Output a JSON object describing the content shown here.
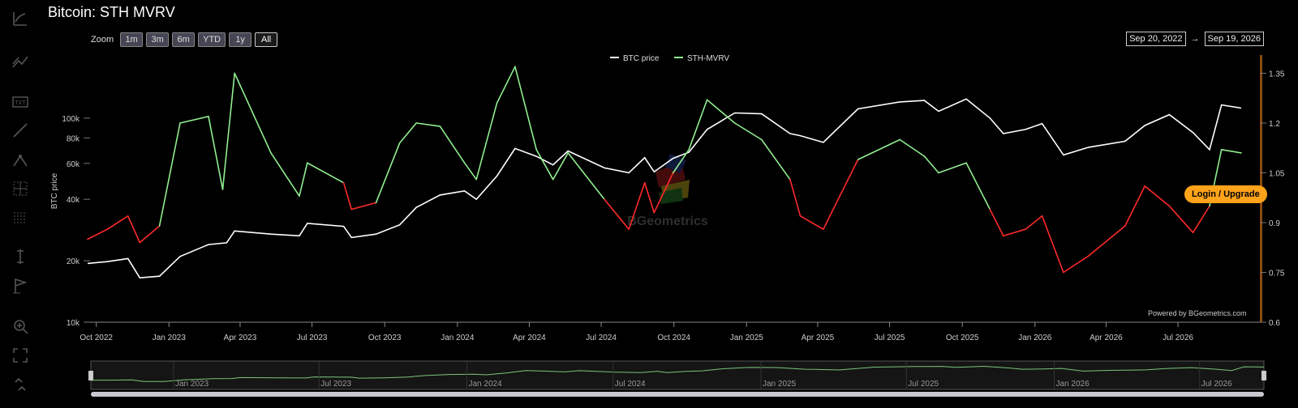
{
  "title": "Bitcoin: STH MVRV",
  "zoom": {
    "label": "Zoom",
    "buttons": [
      "1m",
      "3m",
      "6m",
      "YTD",
      "1y",
      "All"
    ],
    "selected": "All"
  },
  "range": {
    "from": "Sep 20, 2022",
    "arrow": "→",
    "to": "Sep 19, 2026"
  },
  "upgrade_label": "Login / Upgrade",
  "powered_by": "Powered by BGeometrics.com",
  "watermark": "BGeometrics",
  "toolbar_icons": [
    "indicator-icon",
    "trend-line-icon",
    "text-annotation-icon",
    "line-icon",
    "measure-icon",
    "crosshair-icon",
    "grid-icon",
    "vertical-line-icon",
    "flag-icon",
    "zoom-icon",
    "fullscreen-icon",
    "collapse-icon"
  ],
  "colors": {
    "background": "#000000",
    "btc_price": "#ffffff",
    "sth_high": "#90ee90",
    "sth_low": "#ff2a2a",
    "accent": "#ffa31a",
    "right_axis_bar": "#8a4a10"
  },
  "chart_data": {
    "type": "line",
    "title": "Bitcoin: STH MVRV",
    "xlabel": "",
    "ylabel": "BTC price",
    "y2label": "",
    "xlim": [
      "2022-09-20",
      "2026-09-19"
    ],
    "ylim": [
      10000,
      200000
    ],
    "y_scale": "log",
    "y_ticks": [
      "10k",
      "20k",
      "40k",
      "60k",
      "80k",
      "100k"
    ],
    "y_tick_values": [
      10000,
      20000,
      40000,
      60000,
      80000,
      100000
    ],
    "y2lim": [
      0.6,
      1.4
    ],
    "y2_ticks": [
      "0.6",
      "0.75",
      "0.9",
      "1.05",
      "1.2",
      "1.35"
    ],
    "y2_tick_values": [
      0.6,
      0.75,
      0.9,
      1.05,
      1.2,
      1.35
    ],
    "x_ticks": [
      "Oct 2022",
      "Jan 2023",
      "Apr 2023",
      "Jul 2023",
      "Oct 2023",
      "Jan 2024",
      "Apr 2024",
      "Jul 2024",
      "Oct 2024",
      "Jan 2025",
      "Apr 2025",
      "Jul 2025",
      "Oct 2025",
      "Jan 2026",
      "Apr 2026",
      "Jul 2026"
    ],
    "x_tick_dates": [
      "2022-10-01",
      "2023-01-01",
      "2023-04-01",
      "2023-07-01",
      "2023-10-01",
      "2024-01-01",
      "2024-04-01",
      "2024-07-01",
      "2024-10-01",
      "2025-01-01",
      "2025-04-01",
      "2025-07-01",
      "2025-10-01",
      "2026-01-01",
      "2026-04-01",
      "2026-07-01"
    ],
    "navigator_ticks": [
      "Jan 2023",
      "Jul 2023",
      "Jan 2024",
      "Jul 2024",
      "Jan 2025",
      "Jul 2025",
      "Jan 2026",
      "Jul 2026"
    ],
    "navigator_tick_dates": [
      "2023-01-01",
      "2023-07-01",
      "2024-01-01",
      "2024-07-01",
      "2025-01-01",
      "2025-07-01",
      "2026-01-01",
      "2026-07-01"
    ],
    "legend": {
      "position": "top-center"
    },
    "grid": false,
    "series": [
      {
        "name": "BTC price",
        "axis": "left",
        "x": [
          "2022-09-20",
          "2022-10-15",
          "2022-11-10",
          "2022-11-25",
          "2022-12-20",
          "2023-01-15",
          "2023-02-20",
          "2023-03-15",
          "2023-03-25",
          "2023-05-10",
          "2023-06-15",
          "2023-06-25",
          "2023-08-10",
          "2023-08-20",
          "2023-09-20",
          "2023-10-20",
          "2023-11-10",
          "2023-12-10",
          "2024-01-10",
          "2024-01-25",
          "2024-02-20",
          "2024-03-14",
          "2024-04-10",
          "2024-05-01",
          "2024-05-20",
          "2024-07-05",
          "2024-08-05",
          "2024-08-25",
          "2024-09-06",
          "2024-09-30",
          "2024-10-20",
          "2024-11-12",
          "2024-12-17",
          "2025-01-20",
          "2025-02-25",
          "2025-03-10",
          "2025-04-08",
          "2025-05-22",
          "2025-07-14",
          "2025-08-14",
          "2025-09-01",
          "2025-10-06",
          "2025-11-05",
          "2025-11-22",
          "2025-12-20",
          "2026-01-10",
          "2026-02-06",
          "2026-03-10",
          "2026-04-25",
          "2026-05-20",
          "2026-06-20",
          "2026-07-20",
          "2026-08-10",
          "2026-08-25",
          "2026-09-19"
        ],
        "y": [
          19400,
          19800,
          20500,
          16500,
          16800,
          21000,
          24000,
          24500,
          28000,
          27000,
          26500,
          30500,
          29500,
          26000,
          27000,
          30000,
          36500,
          42000,
          44000,
          40000,
          52000,
          71000,
          65000,
          59000,
          69000,
          57000,
          54000,
          64000,
          54500,
          63500,
          68000,
          88000,
          106000,
          105000,
          84000,
          82000,
          76000,
          111000,
          120000,
          122000,
          108000,
          124000,
          100000,
          84000,
          88000,
          94000,
          66000,
          72000,
          77000,
          92000,
          104000,
          85000,
          70000,
          116000,
          112000
        ]
      },
      {
        "name": "STH-MVRV",
        "axis": "right",
        "x": [
          "2022-09-20",
          "2022-10-15",
          "2022-11-10",
          "2022-11-25",
          "2022-12-20",
          "2023-01-15",
          "2023-02-20",
          "2023-03-10",
          "2023-03-25",
          "2023-05-10",
          "2023-06-15",
          "2023-06-25",
          "2023-08-10",
          "2023-08-20",
          "2023-09-20",
          "2023-10-20",
          "2023-11-10",
          "2023-12-10",
          "2024-01-10",
          "2024-01-25",
          "2024-02-20",
          "2024-03-14",
          "2024-04-10",
          "2024-05-01",
          "2024-05-20",
          "2024-07-05",
          "2024-08-05",
          "2024-08-25",
          "2024-09-06",
          "2024-09-30",
          "2024-10-20",
          "2024-11-12",
          "2024-12-17",
          "2025-01-20",
          "2025-02-25",
          "2025-03-10",
          "2025-04-08",
          "2025-05-22",
          "2025-07-14",
          "2025-08-14",
          "2025-09-01",
          "2025-10-06",
          "2025-11-05",
          "2025-11-22",
          "2025-12-20",
          "2026-01-10",
          "2026-02-06",
          "2026-03-10",
          "2026-04-25",
          "2026-05-20",
          "2026-06-20",
          "2026-07-20",
          "2026-08-10",
          "2026-08-25",
          "2026-09-19"
        ],
        "y": [
          0.85,
          0.88,
          0.92,
          0.84,
          0.89,
          1.2,
          1.22,
          1.0,
          1.35,
          1.11,
          0.98,
          1.08,
          1.02,
          0.94,
          0.96,
          1.14,
          1.2,
          1.19,
          1.08,
          1.03,
          1.26,
          1.37,
          1.12,
          1.03,
          1.11,
          0.97,
          0.88,
          1.02,
          0.93,
          1.05,
          1.12,
          1.27,
          1.2,
          1.15,
          1.03,
          0.92,
          0.88,
          1.09,
          1.15,
          1.1,
          1.05,
          1.08,
          0.94,
          0.86,
          0.88,
          0.92,
          0.75,
          0.8,
          0.89,
          1.01,
          0.95,
          0.87,
          0.95,
          1.12,
          1.11
        ]
      }
    ]
  }
}
